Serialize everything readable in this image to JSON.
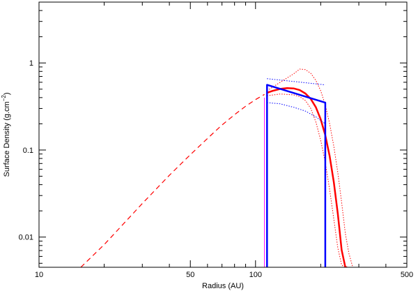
{
  "chart_data": {
    "type": "line",
    "xlabel": "Radius (AU)",
    "ylabel_main": "Surface Density (g.cm",
    "ylabel_exp": "−2",
    "ylabel_close": ")",
    "x_scale": "log",
    "y_scale": "log",
    "xlim": [
      10,
      500
    ],
    "ylim": [
      0.0045,
      5.0
    ],
    "grid": false,
    "x_ticks": [
      {
        "value": 10,
        "label": "10"
      },
      {
        "value": 50,
        "label": "50"
      },
      {
        "value": 100,
        "label": "100"
      },
      {
        "value": 500,
        "label": "500"
      }
    ],
    "y_ticks": [
      {
        "value": 0.01,
        "label": "0.01"
      },
      {
        "value": 0.1,
        "label": "0.1"
      },
      {
        "value": 1,
        "label": "1"
      }
    ],
    "series": [
      {
        "style": "dashed",
        "color": "#ff0000",
        "width": 1.2,
        "x": [
          15.6,
          20,
          30,
          40,
          50,
          60,
          70,
          80,
          90,
          100,
          110
        ],
        "y": [
          0.0045,
          0.0082,
          0.0243,
          0.0512,
          0.0884,
          0.1357,
          0.1935,
          0.2546,
          0.3183,
          0.3795,
          0.4349
        ]
      },
      {
        "style": "solid",
        "color": "#ff0000",
        "width": 2.5,
        "x": [
          113,
          120,
          130,
          140,
          150,
          160,
          170,
          180,
          190,
          200,
          210,
          220,
          230,
          240,
          250,
          260,
          265
        ],
        "y": [
          0.455,
          0.478,
          0.503,
          0.514,
          0.51,
          0.488,
          0.446,
          0.386,
          0.31,
          0.226,
          0.148,
          0.085,
          0.0425,
          0.0185,
          0.0071,
          0.0045,
          0.0045
        ]
      },
      {
        "style": "dotted",
        "color": "#ff0000",
        "width": 1,
        "x": [
          113,
          130,
          150,
          160,
          170,
          180,
          190,
          200,
          210,
          220,
          230,
          240,
          250,
          260,
          270,
          280,
          283
        ],
        "y": [
          0.48,
          0.6,
          0.75,
          0.85,
          0.84,
          0.76,
          0.63,
          0.48,
          0.33,
          0.2,
          0.11,
          0.055,
          0.025,
          0.011,
          0.0065,
          0.0047,
          0.0045
        ]
      },
      {
        "style": "dotted",
        "color": "#ff0000",
        "width": 1,
        "x": [
          113,
          130,
          150,
          160,
          170,
          180,
          190,
          200,
          210,
          220,
          230,
          240,
          250,
          258
        ],
        "y": [
          0.42,
          0.44,
          0.43,
          0.41,
          0.37,
          0.3,
          0.21,
          0.13,
          0.072,
          0.035,
          0.016,
          0.0075,
          0.0048,
          0.0045
        ]
      },
      {
        "style": "solid",
        "color": "#0000ff",
        "width": 2.5,
        "x": [
          113,
          113,
          210,
          210
        ],
        "y": [
          0.0045,
          0.56,
          0.35,
          0.0045
        ]
      },
      {
        "style": "dotted",
        "color": "#0000ff",
        "width": 1,
        "x": [
          113,
          210
        ],
        "y": [
          0.66,
          0.56
        ]
      },
      {
        "style": "dotted",
        "color": "#0000ff",
        "width": 1,
        "x": [
          113,
          130,
          150,
          170,
          190,
          210
        ],
        "y": [
          0.35,
          0.34,
          0.31,
          0.28,
          0.24,
          0.2
        ]
      },
      {
        "style": "solid",
        "color": "#ff00ff",
        "width": 1,
        "x": [
          110,
          110
        ],
        "y": [
          0.0045,
          0.4
        ]
      }
    ]
  }
}
